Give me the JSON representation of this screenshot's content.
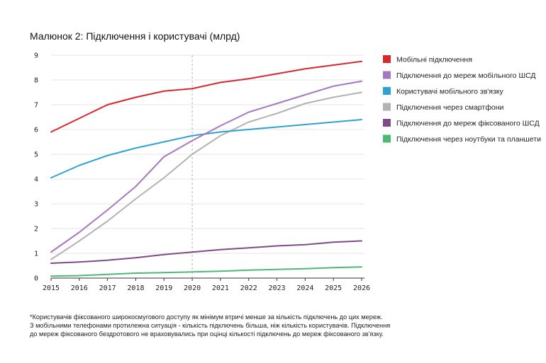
{
  "chart_data": {
    "type": "line",
    "title": "Малюнок 2: Підключення і користувачі (млрд)",
    "xlabel": "",
    "ylabel": "",
    "x": [
      2015,
      2016,
      2017,
      2018,
      2019,
      2020,
      2021,
      2022,
      2023,
      2024,
      2025,
      2026
    ],
    "ylim": [
      0,
      9
    ],
    "yticks": [
      0,
      1,
      2,
      3,
      4,
      5,
      6,
      7,
      8,
      9
    ],
    "reference_line_x": 2020,
    "series": [
      {
        "name": "Мобільні підключення",
        "color": "#d7282f",
        "values": [
          5.9,
          6.45,
          7.0,
          7.3,
          7.55,
          7.65,
          7.9,
          8.05,
          8.25,
          8.45,
          8.6,
          8.75
        ]
      },
      {
        "name": "Підключення до мереж мобільного ШСД",
        "color": "#a678c0",
        "values": [
          1.05,
          1.85,
          2.75,
          3.7,
          4.9,
          5.55,
          6.15,
          6.7,
          7.05,
          7.4,
          7.75,
          7.95
        ]
      },
      {
        "name": "Користувачі мобільного зв'язку",
        "color": "#2ea3d2",
        "values": [
          4.05,
          4.55,
          4.95,
          5.25,
          5.5,
          5.75,
          5.9,
          6.0,
          6.1,
          6.2,
          6.3,
          6.4
        ]
      },
      {
        "name": "Підключення через смартфони",
        "color": "#b3b3b3",
        "values": [
          0.75,
          1.5,
          2.3,
          3.2,
          4.05,
          5.0,
          5.75,
          6.3,
          6.65,
          7.05,
          7.3,
          7.5
        ]
      },
      {
        "name": "Підключення до мереж фіксованого ШСД",
        "color": "#7d4c86",
        "values": [
          0.6,
          0.65,
          0.72,
          0.82,
          0.95,
          1.05,
          1.15,
          1.22,
          1.3,
          1.35,
          1.45,
          1.5
        ]
      },
      {
        "name": "Підключення через ноутбуки та планшети",
        "color": "#4cba75",
        "values": [
          0.08,
          0.1,
          0.15,
          0.2,
          0.22,
          0.25,
          0.28,
          0.32,
          0.35,
          0.38,
          0.42,
          0.45
        ]
      }
    ]
  },
  "footnote": {
    "line1": "*Користувачів фіксованого широкосмугового доступу як мінімум втричі менше за кількість підключень до цих мереж.",
    "line2": "З мобільними телефонами протилежна ситуація - кількість підключень більша, ніж кількість користувачів. Підключення",
    "line3": "до мереж фіксованого бездротового не враховувались при оцінці кількості підключень до мереж фіксованого зв'язку."
  }
}
